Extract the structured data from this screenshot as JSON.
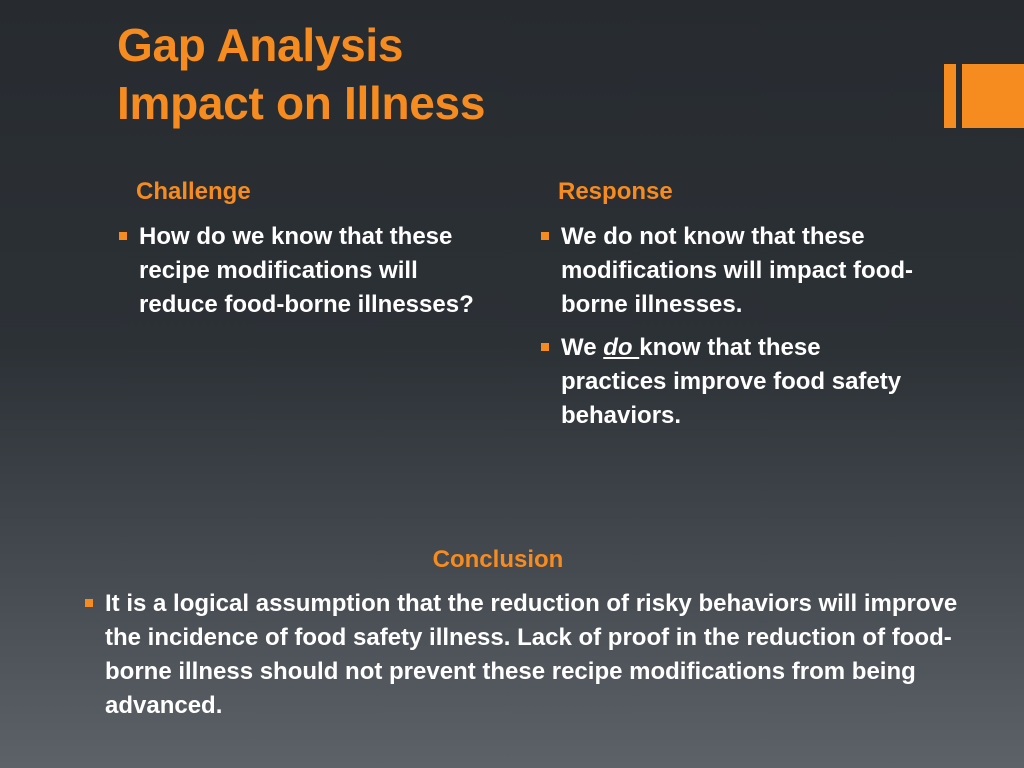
{
  "slide": {
    "title_line1": "Gap Analysis",
    "title_line2": "Impact on Illness",
    "accent_color": "#f68b1f"
  },
  "challenge": {
    "heading": "Challenge",
    "bullets": [
      "How do we know that these recipe modifications will reduce food-borne illnesses?"
    ]
  },
  "response": {
    "heading": "Response",
    "bullet1": "We do not know that these modifications will impact food-borne illnesses.",
    "bullet2_pre": "We ",
    "bullet2_em": "do ",
    "bullet2_post": "know that these practices improve food safety behaviors."
  },
  "conclusion": {
    "heading": "Conclusion",
    "text": "It is a logical assumption that the reduction of risky behaviors will improve the incidence of food safety illness.  Lack of proof in the reduction of food-borne illness should not prevent  these recipe modifications from being advanced."
  }
}
